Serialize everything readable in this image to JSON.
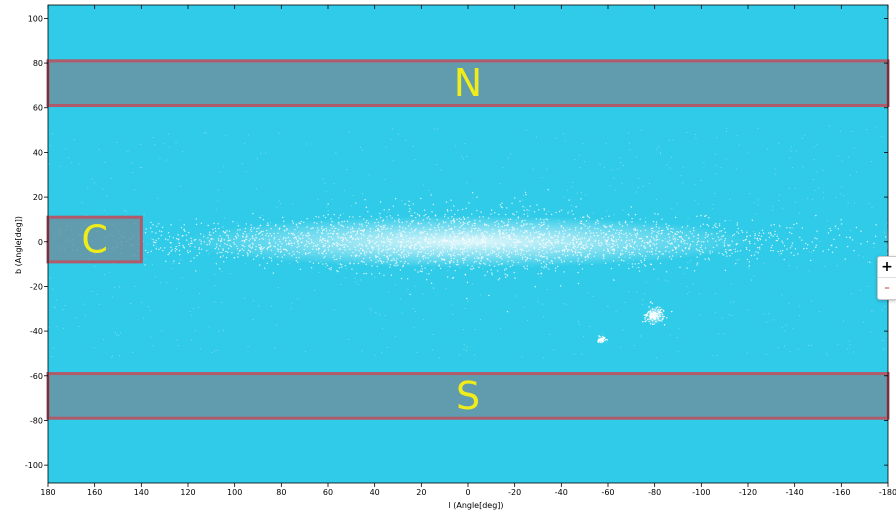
{
  "chart_data": {
    "type": "scatter",
    "title": "",
    "xlabel": "l (Angle[deg])",
    "ylabel": "b (Angle[deg])",
    "xlim": [
      180,
      -180
    ],
    "ylim": [
      -108,
      106
    ],
    "x_axis_reversed": true,
    "xticks": [
      180,
      160,
      140,
      120,
      100,
      80,
      60,
      40,
      20,
      0,
      -20,
      -40,
      -60,
      -80,
      -100,
      -120,
      -140,
      -160,
      -180
    ],
    "yticks": [
      100,
      80,
      60,
      40,
      20,
      0,
      -20,
      -40,
      -60,
      -80,
      -100
    ],
    "background_color": "#30cbe8",
    "point_color": "#ffffff",
    "grid": false,
    "legend": "none",
    "regions": [
      {
        "label": "N",
        "l_range": [
          180,
          -180
        ],
        "b_range": [
          61,
          81
        ],
        "fill": "#6a93a3",
        "stroke": "#b05a6a"
      },
      {
        "label": "C",
        "l_range": [
          180,
          140
        ],
        "b_range": [
          -9,
          11
        ],
        "fill": "#6a93a3",
        "stroke": "#b05a6a"
      },
      {
        "label": "S",
        "l_range": [
          180,
          -180
        ],
        "b_range": [
          -79,
          -59
        ],
        "fill": "#6a93a3",
        "stroke": "#b05a6a"
      }
    ],
    "features": [
      {
        "name": "galactic-plane",
        "l": 0,
        "b": 0,
        "l_width": 340,
        "b_width": 22
      },
      {
        "name": "large-magellanic-cloud",
        "l": -80,
        "b": -33
      },
      {
        "name": "small-magellanic-cloud",
        "l": -57,
        "b": -44
      }
    ]
  },
  "zoom": {
    "in_label": "+",
    "out_label": "-"
  }
}
